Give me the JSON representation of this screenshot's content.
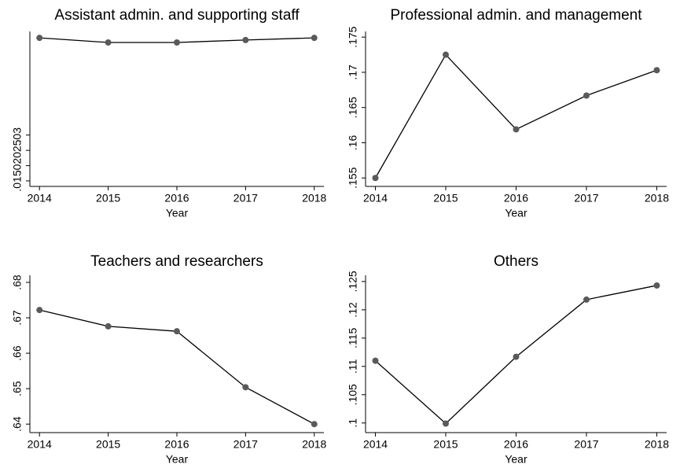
{
  "chart_data": [
    {
      "type": "line",
      "title": "Assistant admin. and supporting staff",
      "x_label": "Year",
      "x": [
        2014,
        2015,
        2016,
        2017,
        2018
      ],
      "values": [
        0.0618,
        0.0603,
        0.0603,
        0.0611,
        0.0618
      ],
      "color": "#000000",
      "marker_color": "#5a5a5a",
      "xlim": [
        2013.86,
        2018.14
      ],
      "xticks": [
        2014,
        2015,
        2016,
        2017,
        2018
      ],
      "ylim": [
        0.0132,
        0.0639
      ],
      "yticks": [
        {
          "value": 0.015,
          "label": ".015"
        },
        {
          "value": 0.02,
          "label": ".02"
        },
        {
          "value": 0.025,
          "label": ".025"
        },
        {
          "value": 0.03,
          "label": ".03"
        }
      ]
    },
    {
      "type": "line",
      "title": "Professional admin. and management",
      "x_label": "Year",
      "x": [
        2014,
        2015,
        2016,
        2017,
        2018
      ],
      "values": [
        0.155,
        0.1725,
        0.1619,
        0.1667,
        0.1703
      ],
      "color": "#000000",
      "marker_color": "#5a5a5a",
      "xlim": [
        2013.86,
        2018.14
      ],
      "xticks": [
        2014,
        2015,
        2016,
        2017,
        2018
      ],
      "ylim": [
        0.1538,
        0.1758
      ],
      "yticks": [
        {
          "value": 0.155,
          "label": ".155"
        },
        {
          "value": 0.16,
          "label": ".16"
        },
        {
          "value": 0.165,
          "label": ".165"
        },
        {
          "value": 0.17,
          "label": ".17"
        },
        {
          "value": 0.175,
          "label": ".175"
        }
      ]
    },
    {
      "type": "line",
      "title": "Teachers and researchers",
      "x_label": "Year",
      "x": [
        2014,
        2015,
        2016,
        2017,
        2018
      ],
      "values": [
        0.6722,
        0.6676,
        0.6662,
        0.6504,
        0.64
      ],
      "color": "#000000",
      "marker_color": "#5a5a5a",
      "xlim": [
        2013.86,
        2018.14
      ],
      "xticks": [
        2014,
        2015,
        2016,
        2017,
        2018
      ],
      "ylim": [
        0.6376,
        0.682
      ],
      "yticks": [
        {
          "value": 0.64,
          "label": ".64"
        },
        {
          "value": 0.65,
          "label": ".65"
        },
        {
          "value": 0.66,
          "label": ".66"
        },
        {
          "value": 0.67,
          "label": ".67"
        },
        {
          "value": 0.68,
          "label": ".68"
        }
      ]
    },
    {
      "type": "line",
      "title": "Others",
      "x_label": "Year",
      "x": [
        2014,
        2015,
        2016,
        2017,
        2018
      ],
      "values": [
        0.111,
        0.0999,
        0.1117,
        0.1218,
        0.1243
      ],
      "color": "#000000",
      "marker_color": "#5a5a5a",
      "xlim": [
        2013.86,
        2018.14
      ],
      "xticks": [
        2014,
        2015,
        2016,
        2017,
        2018
      ],
      "ylim": [
        0.0983,
        0.1261
      ],
      "yticks": [
        {
          "value": 0.1,
          "label": ".1"
        },
        {
          "value": 0.105,
          "label": ".105"
        },
        {
          "value": 0.11,
          "label": ".11"
        },
        {
          "value": 0.115,
          "label": ".115"
        },
        {
          "value": 0.12,
          "label": ".12"
        },
        {
          "value": 0.125,
          "label": ".125"
        }
      ]
    }
  ]
}
